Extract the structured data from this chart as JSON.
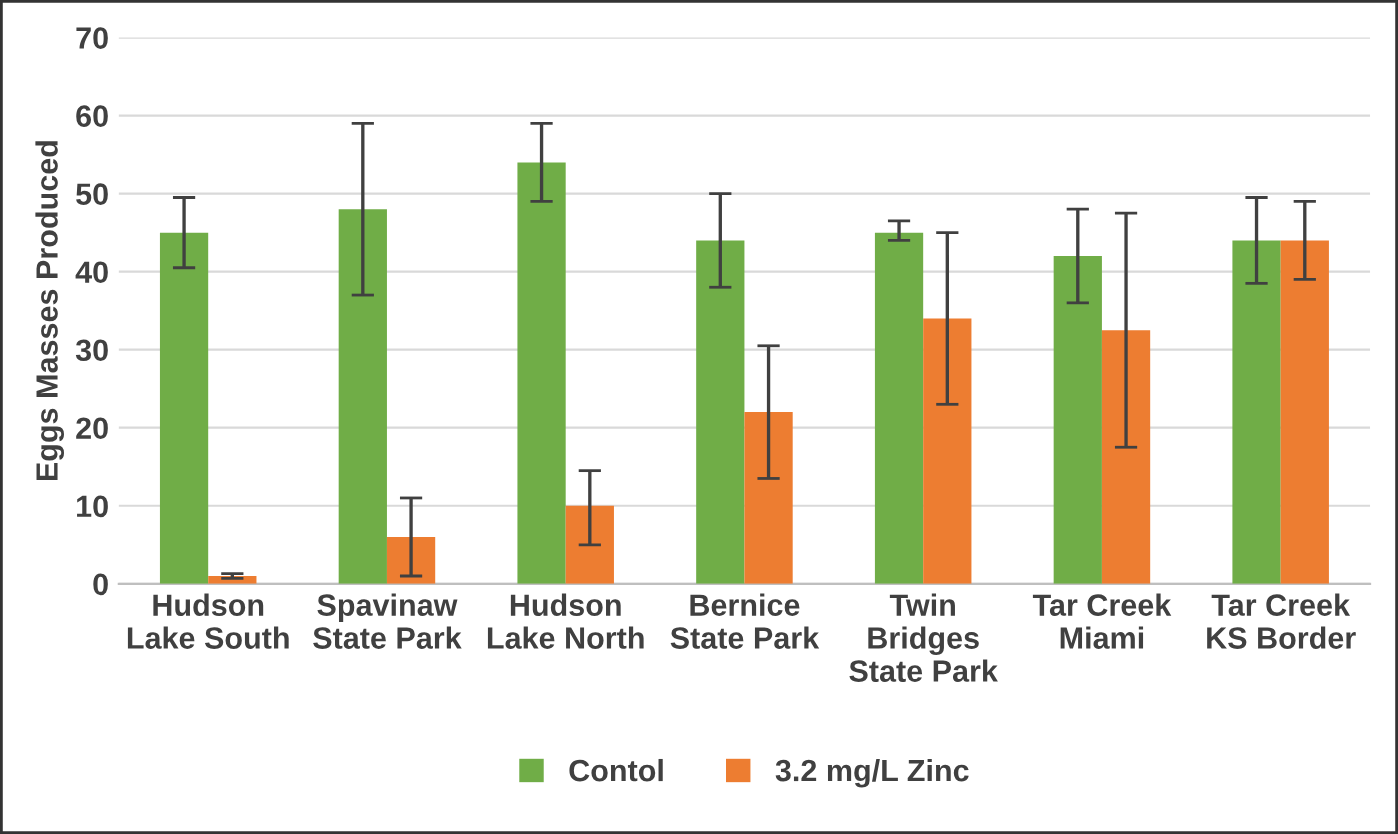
{
  "chart_data": {
    "type": "bar",
    "ylabel": "Eggs Masses Produced",
    "categories": [
      "Hudson\nLake South",
      "Spavinaw\nState Park",
      "Hudson\nLake North",
      "Bernice\nState Park",
      "Twin\nBridges\nState Park",
      "Tar Creek\nMiami",
      "Tar Creek\nKS Border"
    ],
    "series": [
      {
        "name": "Contol",
        "color": "#70ad47",
        "values": [
          45,
          48,
          54,
          44,
          45,
          42,
          44
        ],
        "errors": [
          [
            40.5,
            49.5
          ],
          [
            37,
            59
          ],
          [
            49,
            59
          ],
          [
            38,
            50
          ],
          [
            44,
            46.5
          ],
          [
            36,
            48
          ],
          [
            38.5,
            49.5
          ]
        ]
      },
      {
        "name": "3.2 mg/L Zinc",
        "color": "#ed7d31",
        "values": [
          1,
          6,
          10,
          22,
          34,
          32.5,
          44
        ],
        "errors": [
          [
            0.7,
            1.3
          ],
          [
            1,
            11
          ],
          [
            5,
            14.5
          ],
          [
            13.5,
            30.5
          ],
          [
            23,
            45
          ],
          [
            17.5,
            47.5
          ],
          [
            39,
            49
          ]
        ]
      }
    ],
    "ylim": [
      0,
      70
    ],
    "yticks": [
      0,
      10,
      20,
      30,
      40,
      50,
      60,
      70
    ],
    "grid": "y",
    "legend": "bottom"
  }
}
